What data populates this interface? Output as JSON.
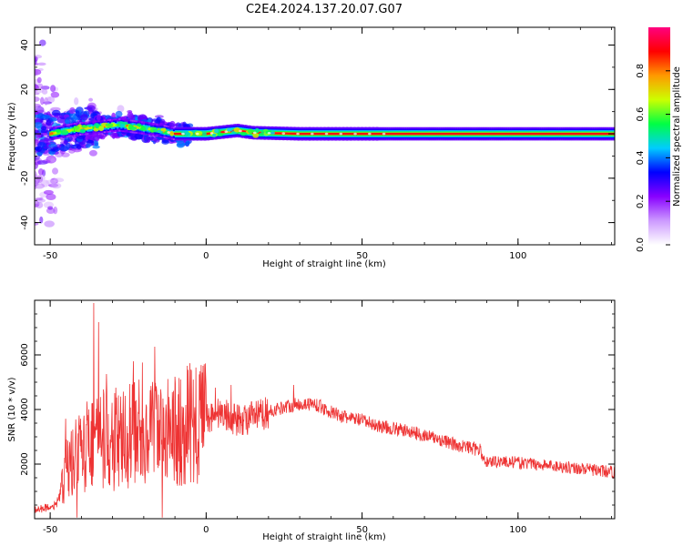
{
  "figure": {
    "title": "C2E4.2024.137.20.07.G07"
  },
  "chart_data": [
    {
      "type": "heatmap",
      "title": "",
      "xlabel": "Height of straight line (km)",
      "ylabel": "Frequency (Hz)",
      "xlim": [
        -55,
        131
      ],
      "ylim": [
        -50,
        48
      ],
      "x_ticks": [
        -50,
        0,
        50,
        100
      ],
      "y_ticks": [
        -40,
        -20,
        0,
        20,
        40
      ],
      "colorbar": {
        "label": "Normalized spectral amplitude",
        "range": [
          0,
          1
        ],
        "ticks": [
          "0.0",
          "0.2",
          "0.4",
          "0.6",
          "0.8"
        ],
        "tick_values": [
          0.0,
          0.2,
          0.4,
          0.6,
          0.8
        ],
        "colors": [
          "#ffffff",
          "#cc99ff",
          "#8800ff",
          "#0000ff",
          "#00ccff",
          "#00ff44",
          "#ccff00",
          "#ff9900",
          "#ff0000",
          "#ff0080"
        ]
      },
      "ridge": [
        {
          "x": -50,
          "freq": 0
        },
        {
          "x": -42,
          "freq": 2
        },
        {
          "x": -35,
          "freq": 3
        },
        {
          "x": -28,
          "freq": 4
        },
        {
          "x": -22,
          "freq": 3
        },
        {
          "x": -15,
          "freq": 1.5
        },
        {
          "x": -10,
          "freq": 0
        },
        {
          "x": 0,
          "freq": 0
        },
        {
          "x": 10,
          "freq": 1.5
        },
        {
          "x": 15,
          "freq": 0.5
        },
        {
          "x": 30,
          "freq": 0
        },
        {
          "x": 131,
          "freq": 0
        }
      ],
      "colors": {
        "ridge_core": "#ff1010",
        "background": "#ffffff"
      }
    },
    {
      "type": "line",
      "title": "",
      "xlabel": "Height of straight line (km)",
      "ylabel": "SNR (10 * v/v)",
      "xlim": [
        -55,
        131
      ],
      "ylim": [
        0,
        8000
      ],
      "x_ticks": [
        -50,
        0,
        50,
        100
      ],
      "y_ticks": [
        2000,
        4000,
        6000
      ],
      "series": [
        {
          "color": "#ee3333",
          "envelope": [
            {
              "x": -55,
              "y": 300
            },
            {
              "x": -48,
              "y": 500
            },
            {
              "x": -45,
              "y": 1800
            },
            {
              "x": -40,
              "y": 2500
            },
            {
              "x": -35,
              "y": 3000
            },
            {
              "x": -30,
              "y": 2800
            },
            {
              "x": -25,
              "y": 3000
            },
            {
              "x": -20,
              "y": 3200
            },
            {
              "x": -15,
              "y": 3000
            },
            {
              "x": -10,
              "y": 3200
            },
            {
              "x": -5,
              "y": 3500
            },
            {
              "x": 0,
              "y": 3700
            },
            {
              "x": 5,
              "y": 3900
            },
            {
              "x": 10,
              "y": 3600
            },
            {
              "x": 15,
              "y": 3700
            },
            {
              "x": 20,
              "y": 3900
            },
            {
              "x": 25,
              "y": 4100
            },
            {
              "x": 30,
              "y": 4200
            },
            {
              "x": 35,
              "y": 4200
            },
            {
              "x": 40,
              "y": 3900
            },
            {
              "x": 45,
              "y": 3700
            },
            {
              "x": 50,
              "y": 3600
            },
            {
              "x": 55,
              "y": 3400
            },
            {
              "x": 60,
              "y": 3300
            },
            {
              "x": 65,
              "y": 3200
            },
            {
              "x": 70,
              "y": 3050
            },
            {
              "x": 75,
              "y": 2900
            },
            {
              "x": 80,
              "y": 2700
            },
            {
              "x": 85,
              "y": 2600
            },
            {
              "x": 88,
              "y": 2500
            },
            {
              "x": 89,
              "y": 2100
            },
            {
              "x": 95,
              "y": 2100
            },
            {
              "x": 105,
              "y": 2000
            },
            {
              "x": 115,
              "y": 1900
            },
            {
              "x": 131,
              "y": 1700
            }
          ],
          "spikes": [
            {
              "x": -36,
              "y": 7900
            },
            {
              "x": -34.5,
              "y": 7200
            },
            {
              "x": -32,
              "y": 5300
            },
            {
              "x": -29,
              "y": 4800
            },
            {
              "x": -26,
              "y": 4500
            },
            {
              "x": -23,
              "y": 5000
            },
            {
              "x": -16.5,
              "y": 6300
            },
            {
              "x": -10,
              "y": 5200
            },
            {
              "x": -6,
              "y": 5600
            },
            {
              "x": -2,
              "y": 5400
            },
            {
              "x": -1,
              "y": 5600
            },
            {
              "x": 3,
              "y": 4800
            },
            {
              "x": 8,
              "y": 4900
            },
            {
              "x": 28,
              "y": 4900
            }
          ]
        }
      ]
    }
  ]
}
